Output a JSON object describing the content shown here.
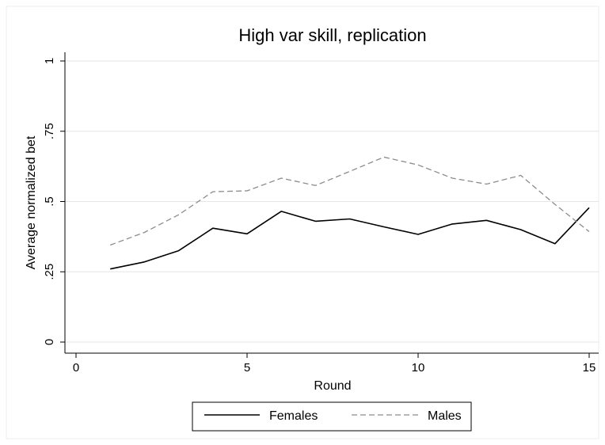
{
  "chart_data": {
    "type": "line",
    "title": "High var skill, replication",
    "xlabel": "Round",
    "ylabel": "Average normalized bet",
    "xlim": [
      0,
      15
    ],
    "ylim": [
      0,
      1
    ],
    "xticks": [
      0,
      5,
      10,
      15
    ],
    "xtick_labels": [
      "0",
      "5",
      "10",
      "15"
    ],
    "yticks": [
      0,
      0.25,
      0.5,
      0.75,
      1
    ],
    "ytick_labels": [
      "0",
      ".25",
      ".5",
      ".75",
      "1"
    ],
    "grid": true,
    "legend_position": "bottom",
    "x": [
      1,
      2,
      3,
      4,
      5,
      6,
      7,
      8,
      9,
      10,
      11,
      12,
      13,
      14,
      15
    ],
    "series": [
      {
        "name": "Females",
        "style": "solid",
        "color": "#000000",
        "values": [
          0.26,
          0.285,
          0.325,
          0.405,
          0.385,
          0.465,
          0.43,
          0.438,
          0.41,
          0.383,
          0.42,
          0.433,
          0.4,
          0.35,
          0.478
        ]
      },
      {
        "name": "Males",
        "style": "dashed",
        "color": "#8c8c8c",
        "values": [
          0.345,
          0.39,
          0.453,
          0.535,
          0.538,
          0.583,
          0.557,
          0.607,
          0.658,
          0.63,
          0.583,
          0.562,
          0.593,
          0.49,
          0.393
        ]
      }
    ]
  }
}
